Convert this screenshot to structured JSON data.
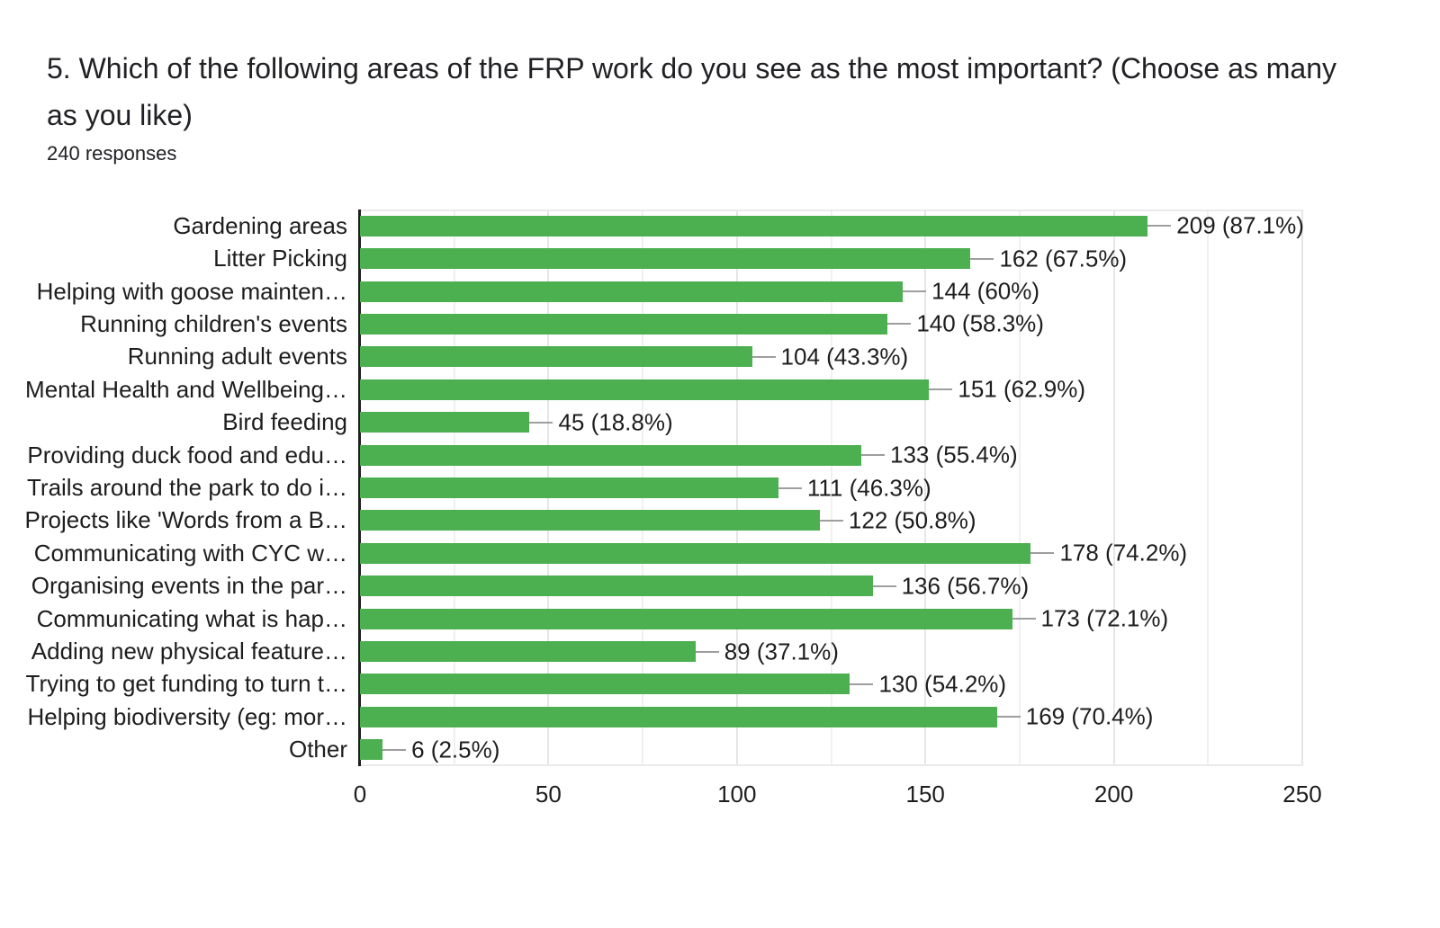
{
  "header": {
    "title": "5. Which of the following areas of the FRP work do you see as the most important? (Choose as many as you like)",
    "responses": "240 responses"
  },
  "chart_data": {
    "type": "bar",
    "orientation": "horizontal",
    "title": "5. Which of the following areas of the FRP work do you see as the most important? (Choose as many as you like)",
    "subtitle": "240 responses",
    "categories": [
      "Gardening areas",
      "Litter Picking",
      "Helping with goose mainten…",
      "Running children's events",
      "Running adult events",
      "Mental Health and Wellbeing…",
      "Bird feeding",
      "Providing duck food and edu…",
      "Trails around the park to do i…",
      "Projects like 'Words from a B…",
      "Communicating with CYC w…",
      "Organising events in the par…",
      "Communicating what is hap…",
      "Adding new physical feature…",
      "Trying to get funding to turn t…",
      "Helping biodiversity (eg: mor…",
      "Other"
    ],
    "values": [
      209,
      162,
      144,
      140,
      104,
      151,
      45,
      133,
      111,
      122,
      178,
      136,
      173,
      89,
      130,
      169,
      6
    ],
    "value_labels": [
      "209 (87.1%)",
      "162 (67.5%)",
      "144 (60%)",
      "140 (58.3%)",
      "104 (43.3%)",
      "151 (62.9%)",
      "45 (18.8%)",
      "133 (55.4%)",
      "111 (46.3%)",
      "122 (50.8%)",
      "178 (74.2%)",
      "136 (56.7%)",
      "173 (72.1%)",
      "89 (37.1%)",
      "130 (54.2%)",
      "169 (70.4%)",
      "6 (2.5%)"
    ],
    "xlim": [
      0,
      250
    ],
    "xticks": [
      0,
      50,
      100,
      150,
      200,
      250
    ],
    "minor_grid_step": 25,
    "grid": true,
    "legend": "none",
    "bar_color": "#4caf50",
    "stem_color": "#9e9e9e",
    "axis_color": "#1f1f1f",
    "text_color": "#1d1d1d"
  }
}
